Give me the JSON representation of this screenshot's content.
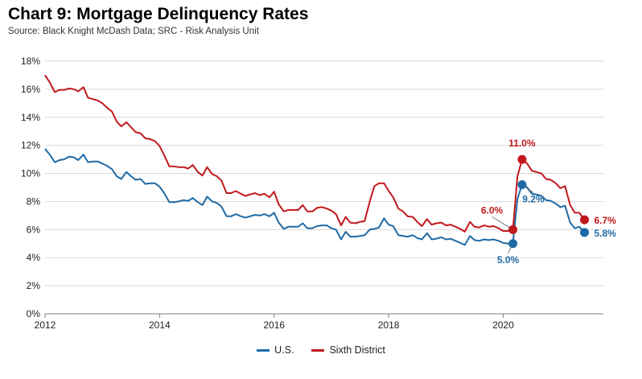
{
  "title": "Chart 9: Mortgage Delinquency Rates",
  "subtitle": "Source: Black Knight McDash Data; SRC - Risk Analysis Unit",
  "colors": {
    "us": "#1f6aa5",
    "sixth": "#c0191c",
    "grid": "#d9d9d9",
    "axis": "#7f7f7f"
  },
  "chart_data": {
    "type": "line",
    "title": "Chart 9: Mortgage Delinquency Rates",
    "subtitle": "Source: Black Knight McDash Data; SRC - Risk Analysis Unit",
    "xlabel": "",
    "ylabel": "",
    "xlim": [
      2012,
      2021.75
    ],
    "ylim": [
      0,
      18
    ],
    "x_ticks": [
      2012,
      2014,
      2016,
      2018,
      2020
    ],
    "x_tick_labels": [
      "2012",
      "2014",
      "2016",
      "2018",
      "2020"
    ],
    "y_ticks": [
      0,
      2,
      4,
      6,
      8,
      10,
      12,
      14,
      16,
      18
    ],
    "y_tick_labels": [
      "0%",
      "2%",
      "4%",
      "6%",
      "8%",
      "10%",
      "12%",
      "14%",
      "16%",
      "18%"
    ],
    "grid": "horizontal",
    "legend_position": "bottom-center",
    "series": [
      {
        "name": "U.S.",
        "color": "#1f6aa5",
        "points": [
          [
            2012.0,
            11.75
          ],
          [
            2012.08,
            11.35
          ],
          [
            2012.17,
            10.8
          ],
          [
            2012.25,
            10.95
          ],
          [
            2012.33,
            11.0
          ],
          [
            2012.42,
            11.2
          ],
          [
            2012.5,
            11.15
          ],
          [
            2012.58,
            10.95
          ],
          [
            2012.67,
            11.35
          ],
          [
            2012.75,
            10.8
          ],
          [
            2012.83,
            10.85
          ],
          [
            2012.92,
            10.85
          ],
          [
            2013.0,
            10.7
          ],
          [
            2013.08,
            10.55
          ],
          [
            2013.17,
            10.3
          ],
          [
            2013.25,
            9.8
          ],
          [
            2013.33,
            9.6
          ],
          [
            2013.42,
            10.1
          ],
          [
            2013.5,
            9.8
          ],
          [
            2013.58,
            9.55
          ],
          [
            2013.67,
            9.6
          ],
          [
            2013.75,
            9.25
          ],
          [
            2013.83,
            9.3
          ],
          [
            2013.92,
            9.3
          ],
          [
            2014.0,
            9.05
          ],
          [
            2014.08,
            8.6
          ],
          [
            2014.17,
            7.95
          ],
          [
            2014.25,
            7.95
          ],
          [
            2014.33,
            8.0
          ],
          [
            2014.42,
            8.1
          ],
          [
            2014.5,
            8.05
          ],
          [
            2014.58,
            8.25
          ],
          [
            2014.67,
            7.95
          ],
          [
            2014.75,
            7.75
          ],
          [
            2014.83,
            8.35
          ],
          [
            2014.92,
            8.0
          ],
          [
            2015.0,
            7.9
          ],
          [
            2015.08,
            7.65
          ],
          [
            2015.17,
            6.95
          ],
          [
            2015.25,
            6.95
          ],
          [
            2015.33,
            7.1
          ],
          [
            2015.42,
            6.95
          ],
          [
            2015.5,
            6.85
          ],
          [
            2015.58,
            6.95
          ],
          [
            2015.67,
            7.05
          ],
          [
            2015.75,
            7.0
          ],
          [
            2015.83,
            7.1
          ],
          [
            2015.92,
            6.95
          ],
          [
            2016.0,
            7.2
          ],
          [
            2016.08,
            6.5
          ],
          [
            2016.17,
            6.05
          ],
          [
            2016.25,
            6.2
          ],
          [
            2016.33,
            6.2
          ],
          [
            2016.42,
            6.2
          ],
          [
            2016.5,
            6.45
          ],
          [
            2016.58,
            6.1
          ],
          [
            2016.67,
            6.1
          ],
          [
            2016.75,
            6.25
          ],
          [
            2016.83,
            6.3
          ],
          [
            2016.92,
            6.3
          ],
          [
            2017.0,
            6.1
          ],
          [
            2017.08,
            6.0
          ],
          [
            2017.17,
            5.3
          ],
          [
            2017.25,
            5.85
          ],
          [
            2017.33,
            5.5
          ],
          [
            2017.42,
            5.5
          ],
          [
            2017.5,
            5.55
          ],
          [
            2017.58,
            5.6
          ],
          [
            2017.67,
            6.0
          ],
          [
            2017.75,
            6.05
          ],
          [
            2017.83,
            6.15
          ],
          [
            2017.92,
            6.8
          ],
          [
            2018.0,
            6.35
          ],
          [
            2018.08,
            6.25
          ],
          [
            2018.17,
            5.6
          ],
          [
            2018.25,
            5.55
          ],
          [
            2018.33,
            5.5
          ],
          [
            2018.42,
            5.6
          ],
          [
            2018.5,
            5.4
          ],
          [
            2018.58,
            5.3
          ],
          [
            2018.67,
            5.75
          ],
          [
            2018.75,
            5.3
          ],
          [
            2018.83,
            5.35
          ],
          [
            2018.92,
            5.45
          ],
          [
            2019.0,
            5.3
          ],
          [
            2019.08,
            5.35
          ],
          [
            2019.17,
            5.2
          ],
          [
            2019.25,
            5.05
          ],
          [
            2019.33,
            4.9
          ],
          [
            2019.42,
            5.55
          ],
          [
            2019.5,
            5.25
          ],
          [
            2019.58,
            5.2
          ],
          [
            2019.67,
            5.3
          ],
          [
            2019.75,
            5.25
          ],
          [
            2019.83,
            5.3
          ],
          [
            2019.92,
            5.2
          ],
          [
            2020.0,
            5.05
          ],
          [
            2020.08,
            5.0
          ],
          [
            2020.17,
            5.0
          ],
          [
            2020.25,
            8.2
          ],
          [
            2020.33,
            9.2
          ],
          [
            2020.42,
            9.0
          ],
          [
            2020.5,
            8.55
          ],
          [
            2020.58,
            8.5
          ],
          [
            2020.67,
            8.4
          ],
          [
            2020.75,
            8.1
          ],
          [
            2020.83,
            8.05
          ],
          [
            2020.92,
            7.85
          ],
          [
            2021.0,
            7.6
          ],
          [
            2021.08,
            7.7
          ],
          [
            2021.17,
            6.5
          ],
          [
            2021.25,
            6.1
          ],
          [
            2021.33,
            6.2
          ],
          [
            2021.42,
            5.8
          ]
        ]
      },
      {
        "name": "Sixth District",
        "color": "#c0191c",
        "points": [
          [
            2012.0,
            17.0
          ],
          [
            2012.08,
            16.5
          ],
          [
            2012.17,
            15.8
          ],
          [
            2012.25,
            15.95
          ],
          [
            2012.33,
            15.95
          ],
          [
            2012.42,
            16.05
          ],
          [
            2012.5,
            16.0
          ],
          [
            2012.58,
            15.85
          ],
          [
            2012.67,
            16.15
          ],
          [
            2012.75,
            15.4
          ],
          [
            2012.83,
            15.3
          ],
          [
            2012.92,
            15.2
          ],
          [
            2013.0,
            15.0
          ],
          [
            2013.08,
            14.7
          ],
          [
            2013.17,
            14.4
          ],
          [
            2013.25,
            13.7
          ],
          [
            2013.33,
            13.35
          ],
          [
            2013.42,
            13.65
          ],
          [
            2013.5,
            13.3
          ],
          [
            2013.58,
            12.95
          ],
          [
            2013.67,
            12.85
          ],
          [
            2013.75,
            12.5
          ],
          [
            2013.83,
            12.45
          ],
          [
            2013.92,
            12.3
          ],
          [
            2014.0,
            11.95
          ],
          [
            2014.08,
            11.3
          ],
          [
            2014.17,
            10.5
          ],
          [
            2014.25,
            10.5
          ],
          [
            2014.33,
            10.45
          ],
          [
            2014.42,
            10.45
          ],
          [
            2014.5,
            10.35
          ],
          [
            2014.58,
            10.6
          ],
          [
            2014.67,
            10.1
          ],
          [
            2014.75,
            9.85
          ],
          [
            2014.83,
            10.45
          ],
          [
            2014.92,
            9.95
          ],
          [
            2015.0,
            9.8
          ],
          [
            2015.08,
            9.5
          ],
          [
            2015.17,
            8.6
          ],
          [
            2015.25,
            8.6
          ],
          [
            2015.33,
            8.75
          ],
          [
            2015.42,
            8.55
          ],
          [
            2015.5,
            8.4
          ],
          [
            2015.58,
            8.5
          ],
          [
            2015.67,
            8.6
          ],
          [
            2015.75,
            8.45
          ],
          [
            2015.83,
            8.55
          ],
          [
            2015.92,
            8.3
          ],
          [
            2016.0,
            8.7
          ],
          [
            2016.08,
            7.8
          ],
          [
            2016.17,
            7.3
          ],
          [
            2016.25,
            7.4
          ],
          [
            2016.33,
            7.4
          ],
          [
            2016.42,
            7.4
          ],
          [
            2016.5,
            7.75
          ],
          [
            2016.58,
            7.3
          ],
          [
            2016.67,
            7.3
          ],
          [
            2016.75,
            7.55
          ],
          [
            2016.83,
            7.6
          ],
          [
            2016.92,
            7.5
          ],
          [
            2017.0,
            7.35
          ],
          [
            2017.08,
            7.1
          ],
          [
            2017.17,
            6.3
          ],
          [
            2017.25,
            6.9
          ],
          [
            2017.33,
            6.5
          ],
          [
            2017.42,
            6.45
          ],
          [
            2017.5,
            6.55
          ],
          [
            2017.58,
            6.6
          ],
          [
            2017.67,
            8.0
          ],
          [
            2017.75,
            9.1
          ],
          [
            2017.83,
            9.3
          ],
          [
            2017.92,
            9.3
          ],
          [
            2018.0,
            8.75
          ],
          [
            2018.08,
            8.3
          ],
          [
            2018.17,
            7.5
          ],
          [
            2018.25,
            7.3
          ],
          [
            2018.33,
            6.95
          ],
          [
            2018.42,
            6.9
          ],
          [
            2018.5,
            6.55
          ],
          [
            2018.58,
            6.25
          ],
          [
            2018.67,
            6.75
          ],
          [
            2018.75,
            6.35
          ],
          [
            2018.83,
            6.45
          ],
          [
            2018.92,
            6.5
          ],
          [
            2019.0,
            6.3
          ],
          [
            2019.08,
            6.35
          ],
          [
            2019.17,
            6.2
          ],
          [
            2019.25,
            6.05
          ],
          [
            2019.33,
            5.85
          ],
          [
            2019.42,
            6.55
          ],
          [
            2019.5,
            6.2
          ],
          [
            2019.58,
            6.15
          ],
          [
            2019.67,
            6.3
          ],
          [
            2019.75,
            6.2
          ],
          [
            2019.83,
            6.25
          ],
          [
            2019.92,
            6.1
          ],
          [
            2020.0,
            5.9
          ],
          [
            2020.08,
            5.9
          ],
          [
            2020.17,
            6.0
          ],
          [
            2020.25,
            9.8
          ],
          [
            2020.33,
            11.0
          ],
          [
            2020.42,
            10.7
          ],
          [
            2020.5,
            10.2
          ],
          [
            2020.58,
            10.1
          ],
          [
            2020.67,
            10.0
          ],
          [
            2020.75,
            9.6
          ],
          [
            2020.83,
            9.55
          ],
          [
            2020.92,
            9.3
          ],
          [
            2021.0,
            8.95
          ],
          [
            2021.08,
            9.1
          ],
          [
            2021.17,
            7.75
          ],
          [
            2021.25,
            7.2
          ],
          [
            2021.33,
            7.2
          ],
          [
            2021.42,
            6.7
          ]
        ]
      }
    ],
    "annotations": [
      {
        "series": "Sixth District",
        "x": 2020.17,
        "y": 6.0,
        "label": "6.0%"
      },
      {
        "series": "Sixth District",
        "x": 2020.33,
        "y": 11.0,
        "label": "11.0%"
      },
      {
        "series": "Sixth District",
        "x": 2021.42,
        "y": 6.7,
        "label": "6.7%"
      },
      {
        "series": "U.S.",
        "x": 2020.17,
        "y": 5.0,
        "label": "5.0%"
      },
      {
        "series": "U.S.",
        "x": 2020.33,
        "y": 9.2,
        "label": "9.2%"
      },
      {
        "series": "U.S.",
        "x": 2021.42,
        "y": 5.8,
        "label": "5.8%"
      }
    ]
  },
  "legend": [
    {
      "label": "U.S.",
      "color": "#1f6aa5"
    },
    {
      "label": "Sixth District",
      "color": "#c0191c"
    }
  ]
}
